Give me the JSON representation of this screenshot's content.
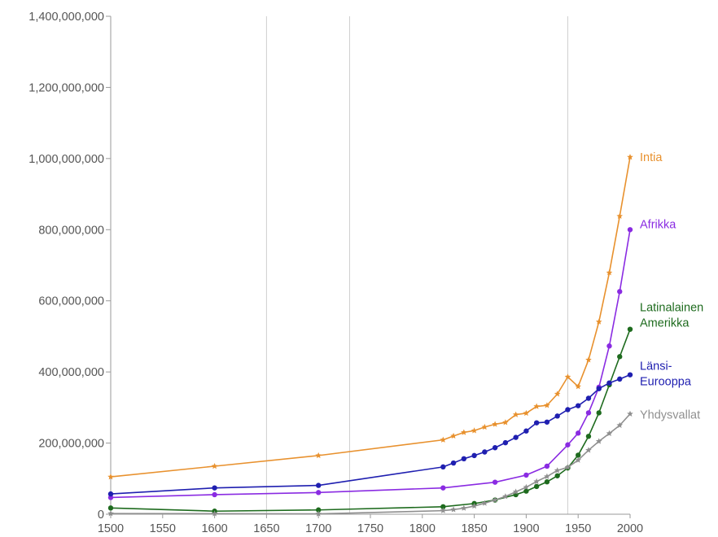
{
  "chart_data": {
    "type": "line",
    "title": "",
    "xlabel": "",
    "ylabel": "",
    "xlim": [
      1500,
      2000
    ],
    "ylim": [
      0,
      1400000000
    ],
    "x_ticks": [
      1500,
      1550,
      1600,
      1650,
      1700,
      1750,
      1800,
      1850,
      1900,
      1950,
      2000
    ],
    "y_ticks": [
      0,
      200000000,
      400000000,
      600000000,
      800000000,
      1000000000,
      1200000000,
      1400000000
    ],
    "y_tick_labels": [
      "0",
      "200,000,000",
      "400,000,000",
      "600,000,000",
      "800,000,000",
      "1,000,000,000",
      "1,200,000,000",
      "1,400,000,000"
    ],
    "x_tick_labels": [
      "1500",
      "1550",
      "1600",
      "1650",
      "1700",
      "1750",
      "1800",
      "1850",
      "1900",
      "1950",
      "2000"
    ],
    "vertical_reference_lines": [
      1650,
      1730,
      1940
    ],
    "grid": false,
    "legend": "direct labels at line ends (right)",
    "series": [
      {
        "name": "Intia",
        "label_lines": [
          "Intia"
        ],
        "color": "#e8912e",
        "marker": "star",
        "x": [
          1500,
          1600,
          1700,
          1820,
          1830,
          1840,
          1850,
          1860,
          1870,
          1880,
          1890,
          1900,
          1910,
          1920,
          1930,
          1940,
          1950,
          1960,
          1970,
          1980,
          1990,
          2000
        ],
        "y": [
          105000000,
          135000000,
          165000000,
          209000000,
          220000000,
          230000000,
          235000000,
          245000000,
          253000000,
          258000000,
          280000000,
          284000000,
          303000000,
          306000000,
          338000000,
          386000000,
          359000000,
          434000000,
          541000000,
          679000000,
          838000000,
          1004000000
        ]
      },
      {
        "name": "Afrikka",
        "label_lines": [
          "Afrikka"
        ],
        "color": "#8a2be2",
        "marker": "circle",
        "x": [
          1500,
          1600,
          1700,
          1820,
          1870,
          1900,
          1920,
          1940,
          1950,
          1960,
          1970,
          1980,
          1990,
          2000
        ],
        "y": [
          47000000,
          55000000,
          61000000,
          74000000,
          90000000,
          110000000,
          135000000,
          195000000,
          228000000,
          285000000,
          357000000,
          473000000,
          626000000,
          800000000
        ]
      },
      {
        "name": "Latinalainen Amerikka",
        "label_lines": [
          "Latinalainen",
          "Amerikka"
        ],
        "color": "#1e6b1e",
        "marker": "circle",
        "x": [
          1500,
          1600,
          1700,
          1820,
          1850,
          1870,
          1890,
          1900,
          1910,
          1920,
          1930,
          1940,
          1950,
          1960,
          1970,
          1980,
          1990,
          2000
        ],
        "y": [
          17500000,
          8600000,
          12000000,
          21000000,
          30000000,
          40000000,
          55000000,
          65000000,
          78000000,
          91000000,
          108000000,
          130000000,
          166000000,
          219000000,
          285000000,
          364000000,
          443000000,
          520000000
        ]
      },
      {
        "name": "Länsi-Eurooppa",
        "label_lines": [
          "Länsi-",
          "Eurooppa"
        ],
        "color": "#1f1fb0",
        "marker": "circle",
        "x": [
          1500,
          1600,
          1700,
          1820,
          1830,
          1840,
          1850,
          1860,
          1870,
          1880,
          1890,
          1900,
          1910,
          1920,
          1930,
          1940,
          1950,
          1960,
          1970,
          1980,
          1990,
          2000
        ],
        "y": [
          57000000,
          74000000,
          81000000,
          133000000,
          144000000,
          156000000,
          165000000,
          175000000,
          187000000,
          201000000,
          216000000,
          234000000,
          257000000,
          259000000,
          276000000,
          294000000,
          305000000,
          326000000,
          353000000,
          369000000,
          380000000,
          392000000
        ]
      },
      {
        "name": "Yhdysvallat",
        "label_lines": [
          "Yhdysvallat"
        ],
        "color": "#8f8f8f",
        "marker": "star",
        "x": [
          1500,
          1600,
          1700,
          1820,
          1830,
          1840,
          1850,
          1860,
          1870,
          1880,
          1890,
          1900,
          1910,
          1920,
          1930,
          1940,
          1950,
          1960,
          1970,
          1980,
          1990,
          2000
        ],
        "y": [
          2000000,
          1500000,
          1000000,
          10000000,
          13000000,
          17000000,
          23000000,
          31000000,
          40000000,
          50000000,
          63000000,
          76000000,
          92000000,
          106000000,
          123000000,
          132000000,
          152000000,
          180000000,
          205000000,
          227000000,
          250000000,
          282000000
        ]
      }
    ]
  }
}
